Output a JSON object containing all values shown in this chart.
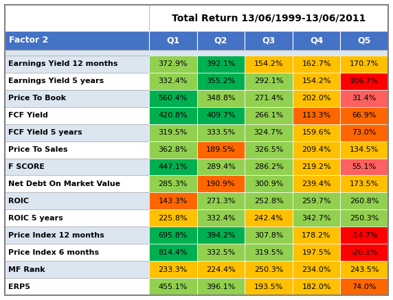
{
  "title": "Total Return 13/06/1999-13/06/2011",
  "header_col": "Factor 2",
  "columns": [
    "Q1",
    "Q2",
    "Q3",
    "Q4",
    "Q5"
  ],
  "rows": [
    "Earnings Yield 12 months",
    "Earnings Yield 5 years",
    "Price To Book",
    "FCF Yield",
    "FCF Yield 5 years",
    "Price To Sales",
    "F SCORE",
    "Net Debt On Market Value",
    "ROIC",
    "ROIC 5 years",
    "Price Index 12 months",
    "Price Index 6 months",
    "MF Rank",
    "ERP5"
  ],
  "values": [
    [
      372.9,
      392.1,
      154.2,
      162.7,
      170.7
    ],
    [
      332.4,
      355.2,
      292.1,
      154.2,
      106.7
    ],
    [
      560.4,
      348.8,
      271.4,
      202.0,
      31.4
    ],
    [
      420.8,
      409.7,
      266.1,
      113.3,
      66.9
    ],
    [
      319.5,
      333.5,
      324.7,
      159.6,
      73.0
    ],
    [
      362.8,
      189.5,
      326.5,
      209.4,
      134.5
    ],
    [
      447.1,
      289.4,
      286.2,
      219.2,
      55.1
    ],
    [
      285.3,
      190.9,
      300.9,
      239.4,
      173.5
    ],
    [
      143.3,
      271.3,
      252.8,
      259.7,
      260.8
    ],
    [
      225.8,
      332.4,
      242.4,
      342.7,
      250.3
    ],
    [
      695.8,
      394.2,
      307.8,
      178.2,
      -14.7
    ],
    [
      814.4,
      332.5,
      319.5,
      197.5,
      -26.1
    ],
    [
      233.3,
      224.4,
      250.3,
      234.0,
      243.5
    ],
    [
      455.1,
      396.1,
      193.5,
      182.0,
      74.0
    ]
  ],
  "cell_colors": [
    [
      "#92D050",
      "#00B050",
      "#FFC000",
      "#FFC000",
      "#FFC000"
    ],
    [
      "#92D050",
      "#00B050",
      "#92D050",
      "#FFC000",
      "#FF0000"
    ],
    [
      "#00B050",
      "#92D050",
      "#92D050",
      "#FFC000",
      "#FF6060"
    ],
    [
      "#00B050",
      "#00B050",
      "#92D050",
      "#FF6600",
      "#FF6600"
    ],
    [
      "#92D050",
      "#92D050",
      "#92D050",
      "#FFC000",
      "#FF6600"
    ],
    [
      "#92D050",
      "#FF6600",
      "#92D050",
      "#FFC000",
      "#FFC000"
    ],
    [
      "#00B050",
      "#92D050",
      "#92D050",
      "#FFC000",
      "#FF6060"
    ],
    [
      "#92D050",
      "#FF6600",
      "#92D050",
      "#FFC000",
      "#FFC000"
    ],
    [
      "#FF6600",
      "#92D050",
      "#92D050",
      "#92D050",
      "#92D050"
    ],
    [
      "#FFC000",
      "#92D050",
      "#FFC000",
      "#92D050",
      "#92D050"
    ],
    [
      "#00B050",
      "#00B050",
      "#92D050",
      "#FFC000",
      "#FF0000"
    ],
    [
      "#00B050",
      "#92D050",
      "#92D050",
      "#FFC000",
      "#FF0000"
    ],
    [
      "#FFC000",
      "#FFC000",
      "#FFC000",
      "#FFC000",
      "#FFC000"
    ],
    [
      "#92D050",
      "#92D050",
      "#FFC000",
      "#FFC000",
      "#FF6600"
    ]
  ],
  "header_bg": "#4472C4",
  "header_fg": "#FFFFFF",
  "row_bg_odd": "#DCE6F1",
  "row_bg_even": "#FFFFFF",
  "outer_border": "#A0A0A0",
  "fig_bg": "#FFFFFF",
  "title_fontsize": 10,
  "header_fontsize": 9,
  "data_fontsize": 8,
  "label_fontsize": 8
}
